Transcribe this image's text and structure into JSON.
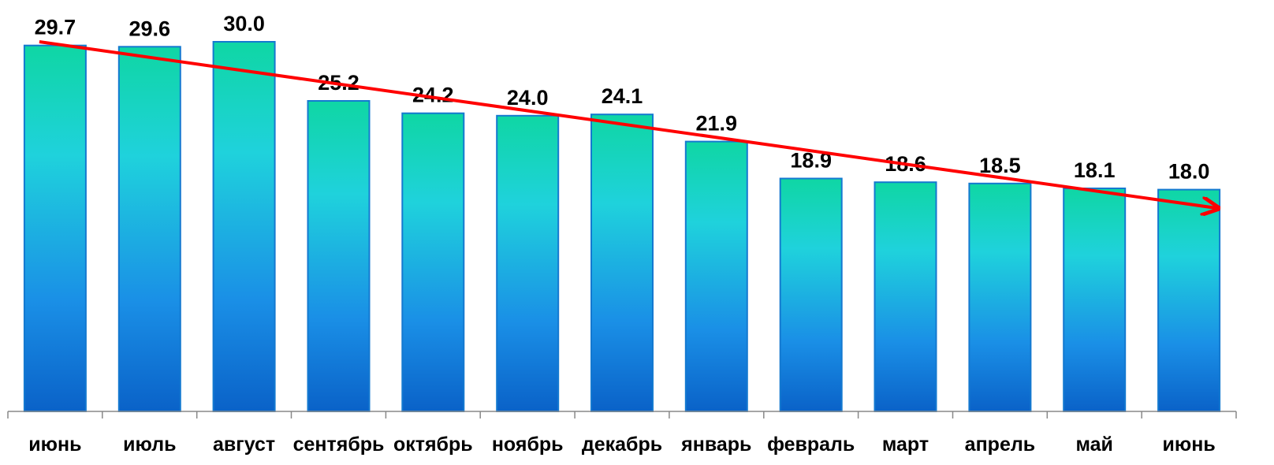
{
  "chart_data": {
    "type": "bar",
    "categories": [
      "июнь",
      "июль",
      "август",
      "сентябрь",
      "октябрь",
      "ноябрь",
      "декабрь",
      "январь",
      "февраль",
      "март",
      "апрель",
      "май",
      "июнь"
    ],
    "values": [
      29.7,
      29.6,
      30.0,
      25.2,
      24.2,
      24.0,
      24.1,
      21.9,
      18.9,
      18.6,
      18.5,
      18.1,
      18.0
    ],
    "value_labels": [
      "29.7",
      "29.6",
      "30.0",
      "25.2",
      "24.2",
      "24.0",
      "24.1",
      "21.9",
      "18.9",
      "18.6",
      "18.5",
      "18.1",
      "18.0"
    ],
    "ylim": [
      0,
      30.0
    ],
    "grid": false,
    "legend": "none",
    "trend_arrow": {
      "from": {
        "category_index": 0,
        "value": 30.0
      },
      "to": {
        "category_index": 12,
        "value": 16.5
      },
      "color": "#ff0000"
    },
    "colors": {
      "bar_top": "#0fd6a4",
      "bar_mid": "#1fd2dc",
      "bar_low": "#1a8fe6",
      "bar_bottom": "#0a62c8",
      "bar_outline": "#1479d0",
      "axis": "#888888",
      "arrow": "#ff0000",
      "text": "#000000"
    }
  }
}
